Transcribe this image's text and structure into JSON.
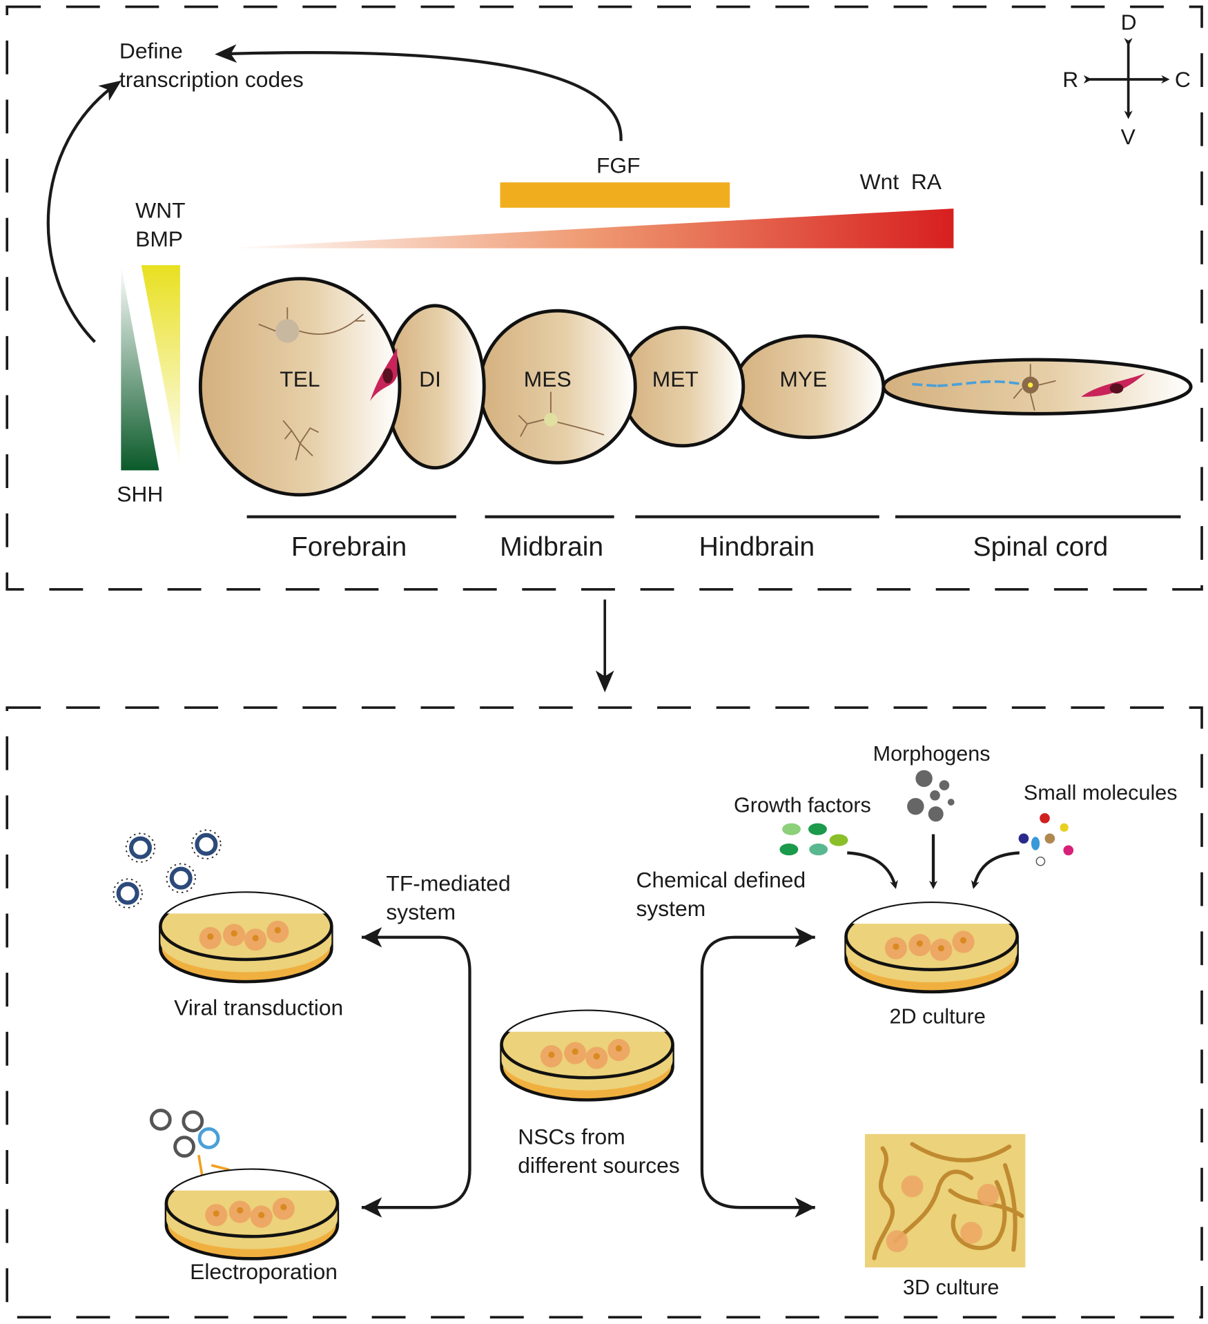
{
  "top_panel": {
    "define_line1": "Define",
    "define_line2": "transcription codes",
    "axes": {
      "dorsal": "D",
      "ventral": "V",
      "rostral": "R",
      "caudal": "C"
    },
    "fgf": "FGF",
    "wnt_ra": "Wnt  RA",
    "wnt": "WNT",
    "bmp": "BMP",
    "shh": "SHH",
    "regions": [
      "TEL",
      "DI",
      "MES",
      "MET",
      "MYE"
    ],
    "divisions": [
      "Forebrain",
      "Midbrain",
      "Hindbrain",
      "Spinal cord"
    ]
  },
  "bottom_panel": {
    "viral": "Viral transduction",
    "electro": "Electroporation",
    "tf_line1": "TF-mediated",
    "tf_line2": "system",
    "chem_line1": "Chemical defined",
    "chem_line2": "system",
    "nsc_line1": "NSCs from",
    "nsc_line2": "different sources",
    "growth": "Growth factors",
    "morphogens": "Morphogens",
    "small": "Small molecules",
    "culture2d": "2D culture",
    "culture3d": "3D culture"
  },
  "colors": {
    "fgf": "#f0ae1f",
    "ra_gradient_end": "#d71f1f",
    "shh": "#0b5a2a",
    "wnt_bmp": "#e8e020",
    "tissue": "#d4b07e",
    "medium": "#ecd27a"
  }
}
